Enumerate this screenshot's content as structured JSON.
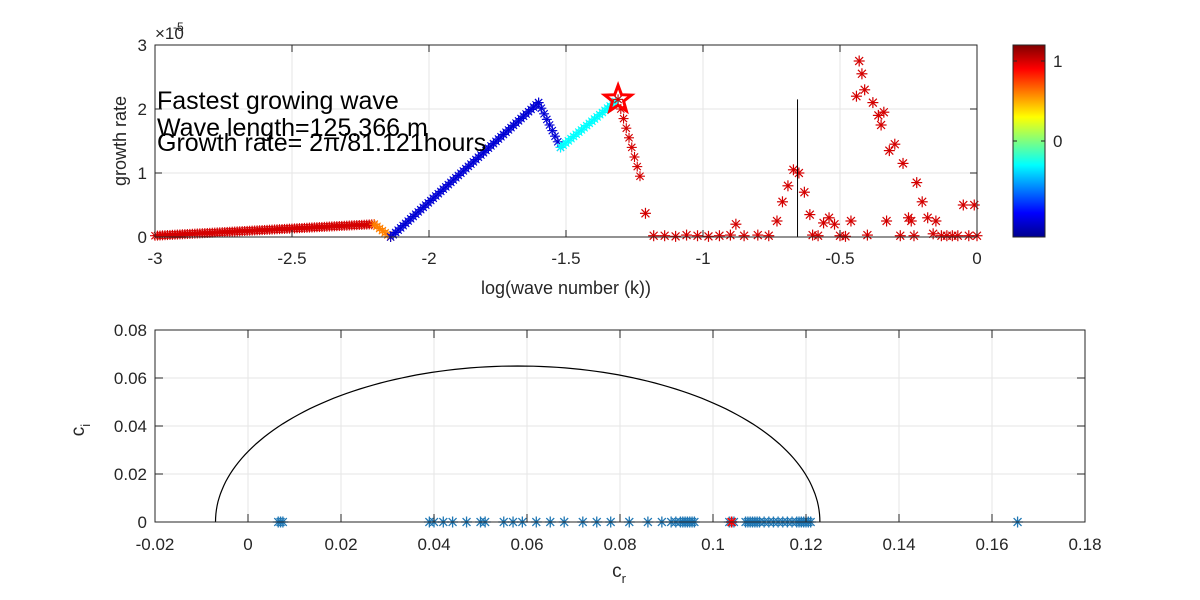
{
  "chart_data": [
    {
      "type": "scatter",
      "xlabel": "log(wave number (k))",
      "ylabel": "growth rate",
      "xlim": [
        -3,
        0
      ],
      "ylim": [
        0,
        3
      ],
      "y_exponent": "×10",
      "y_exponent_power": "-5",
      "x_ticks": [
        -3,
        -2.5,
        -2,
        -1.5,
        -1,
        -0.5,
        0
      ],
      "x_tick_labels": [
        "-3",
        "-2.5",
        "-2",
        "-1.5",
        "-1",
        "-0.5",
        "0"
      ],
      "y_ticks": [
        0,
        1,
        2,
        3
      ],
      "y_tick_labels": [
        "0",
        "1",
        "2",
        "3"
      ],
      "grid": true,
      "annotations": [
        "Fastest growing wave",
        "Wave length=125.366 m",
        "Growth rate= 2π/81.121hours"
      ],
      "max_marker": {
        "x": -1.31,
        "y": 2.15,
        "shape": "pentagram",
        "color": "#ff0000"
      },
      "vertical_line": {
        "x": -0.655,
        "y0": 0,
        "y1": 2.15
      },
      "colorbar": {
        "ticks": [
          1,
          0
        ],
        "tick_labels": [
          "1",
          "0"
        ],
        "range": [
          -1.2,
          1.2
        ],
        "colormap": "jet"
      },
      "series": [
        {
          "marker": "*",
          "color_by": "colorbar value",
          "segments": [
            {
              "x_range": [
                -3.0,
                -2.2
              ],
              "y_start": 0.02,
              "y_end": 0.2,
              "value": 1.0
            },
            {
              "x_range": [
                -2.2,
                -2.14
              ],
              "y_start": 0.2,
              "y_end": 0.0,
              "value": 0.6
            },
            {
              "x_range": [
                -2.14,
                -1.6
              ],
              "y_start": 0.0,
              "y_end": 2.1,
              "value": -1.0
            },
            {
              "x_range": [
                -1.6,
                -1.52
              ],
              "y_start": 2.1,
              "y_end": 1.4,
              "value": -1.0
            },
            {
              "x_range": [
                -1.52,
                -1.31
              ],
              "y_start": 1.4,
              "y_end": 2.15,
              "value": -0.3
            },
            {
              "x_range": [
                -1.31,
                -1.23
              ],
              "y_start": 2.15,
              "y_end": 0.95,
              "value": 1.0
            }
          ],
          "points": [
            [
              -1.21,
              0.37
            ],
            [
              -1.18,
              0.02
            ],
            [
              -1.14,
              0.02
            ],
            [
              -1.1,
              0.01
            ],
            [
              -1.06,
              0.03
            ],
            [
              -1.02,
              0.02
            ],
            [
              -0.98,
              0.01
            ],
            [
              -0.94,
              0.02
            ],
            [
              -0.9,
              0.03
            ],
            [
              -0.88,
              0.2
            ],
            [
              -0.85,
              0.02
            ],
            [
              -0.8,
              0.03
            ],
            [
              -0.76,
              0.02
            ],
            [
              -0.73,
              0.25
            ],
            [
              -0.71,
              0.55
            ],
            [
              -0.69,
              0.8
            ],
            [
              -0.67,
              1.05
            ],
            [
              -0.65,
              1.0
            ],
            [
              -0.63,
              0.7
            ],
            [
              -0.61,
              0.35
            ],
            [
              -0.6,
              0.03
            ],
            [
              -0.58,
              0.02
            ],
            [
              -0.56,
              0.22
            ],
            [
              -0.54,
              0.3
            ],
            [
              -0.52,
              0.2
            ],
            [
              -0.5,
              0.02
            ],
            [
              -0.48,
              0.01
            ],
            [
              -0.46,
              0.25
            ],
            [
              -0.44,
              2.2
            ],
            [
              -0.43,
              2.75
            ],
            [
              -0.42,
              2.55
            ],
            [
              -0.41,
              2.3
            ],
            [
              -0.4,
              0.03
            ],
            [
              -0.38,
              2.1
            ],
            [
              -0.36,
              1.9
            ],
            [
              -0.35,
              1.75
            ],
            [
              -0.34,
              1.95
            ],
            [
              -0.33,
              0.25
            ],
            [
              -0.32,
              1.35
            ],
            [
              -0.3,
              1.45
            ],
            [
              -0.28,
              0.02
            ],
            [
              -0.27,
              1.15
            ],
            [
              -0.25,
              0.3
            ],
            [
              -0.24,
              0.25
            ],
            [
              -0.23,
              0.02
            ],
            [
              -0.22,
              0.85
            ],
            [
              -0.2,
              0.55
            ],
            [
              -0.18,
              0.3
            ],
            [
              -0.16,
              0.05
            ],
            [
              -0.15,
              0.25
            ],
            [
              -0.13,
              0.02
            ],
            [
              -0.11,
              0.02
            ],
            [
              -0.09,
              0.02
            ],
            [
              -0.07,
              0.02
            ],
            [
              -0.05,
              0.5
            ],
            [
              -0.03,
              0.02
            ],
            [
              -0.01,
              0.5
            ],
            [
              0.0,
              0.02
            ]
          ]
        }
      ]
    },
    {
      "type": "scatter",
      "xlabel": "c",
      "xlabel_sub": "r",
      "ylabel": "c",
      "ylabel_sub": "i",
      "xlim": [
        -0.02,
        0.18
      ],
      "ylim": [
        0,
        0.08
      ],
      "x_ticks": [
        -0.02,
        0,
        0.02,
        0.04,
        0.06,
        0.08,
        0.1,
        0.12,
        0.14,
        0.16,
        0.18
      ],
      "x_tick_labels": [
        "-0.02",
        "0",
        "0.02",
        "0.04",
        "0.06",
        "0.08",
        "0.1",
        "0.12",
        "0.14",
        "0.16",
        "0.18"
      ],
      "y_ticks": [
        0,
        0.02,
        0.04,
        0.06,
        0.08
      ],
      "y_tick_labels": [
        "0",
        "0.02",
        "0.04",
        "0.06",
        "0.08"
      ],
      "grid": true,
      "semicircle": {
        "center": 0.058,
        "radius": 0.065,
        "height": 0.065
      },
      "highlight_point": {
        "x": 0.104,
        "y": 0,
        "color": "#ff0000"
      },
      "series": [
        {
          "marker": "*",
          "color": "#1f77b4",
          "x": [
            0.0065,
            0.007,
            0.0075,
            0.039,
            0.04,
            0.042,
            0.044,
            0.047,
            0.05,
            0.051,
            0.055,
            0.057,
            0.059,
            0.062,
            0.065,
            0.068,
            0.072,
            0.075,
            0.078,
            0.082,
            0.086,
            0.089,
            0.091,
            0.092,
            0.093,
            0.0935,
            0.094,
            0.0945,
            0.095,
            0.0955,
            0.096,
            0.1035,
            0.104,
            0.1045,
            0.107,
            0.1075,
            0.108,
            0.1085,
            0.109,
            0.1095,
            0.11,
            0.111,
            0.112,
            0.113,
            0.114,
            0.115,
            0.116,
            0.117,
            0.118,
            0.1185,
            0.119,
            0.1195,
            0.12,
            0.1205,
            0.121,
            0.1655
          ],
          "y": [
            0,
            0,
            0,
            0,
            0,
            0,
            0,
            0,
            0,
            0,
            0,
            0,
            0,
            0,
            0,
            0,
            0,
            0,
            0,
            0,
            0,
            0,
            0,
            0,
            0,
            0,
            0,
            0,
            0,
            0,
            0,
            0,
            0,
            0,
            0,
            0,
            0,
            0,
            0,
            0,
            0,
            0,
            0,
            0,
            0,
            0,
            0,
            0,
            0,
            0,
            0,
            0,
            0,
            0,
            0,
            0
          ]
        }
      ]
    }
  ]
}
